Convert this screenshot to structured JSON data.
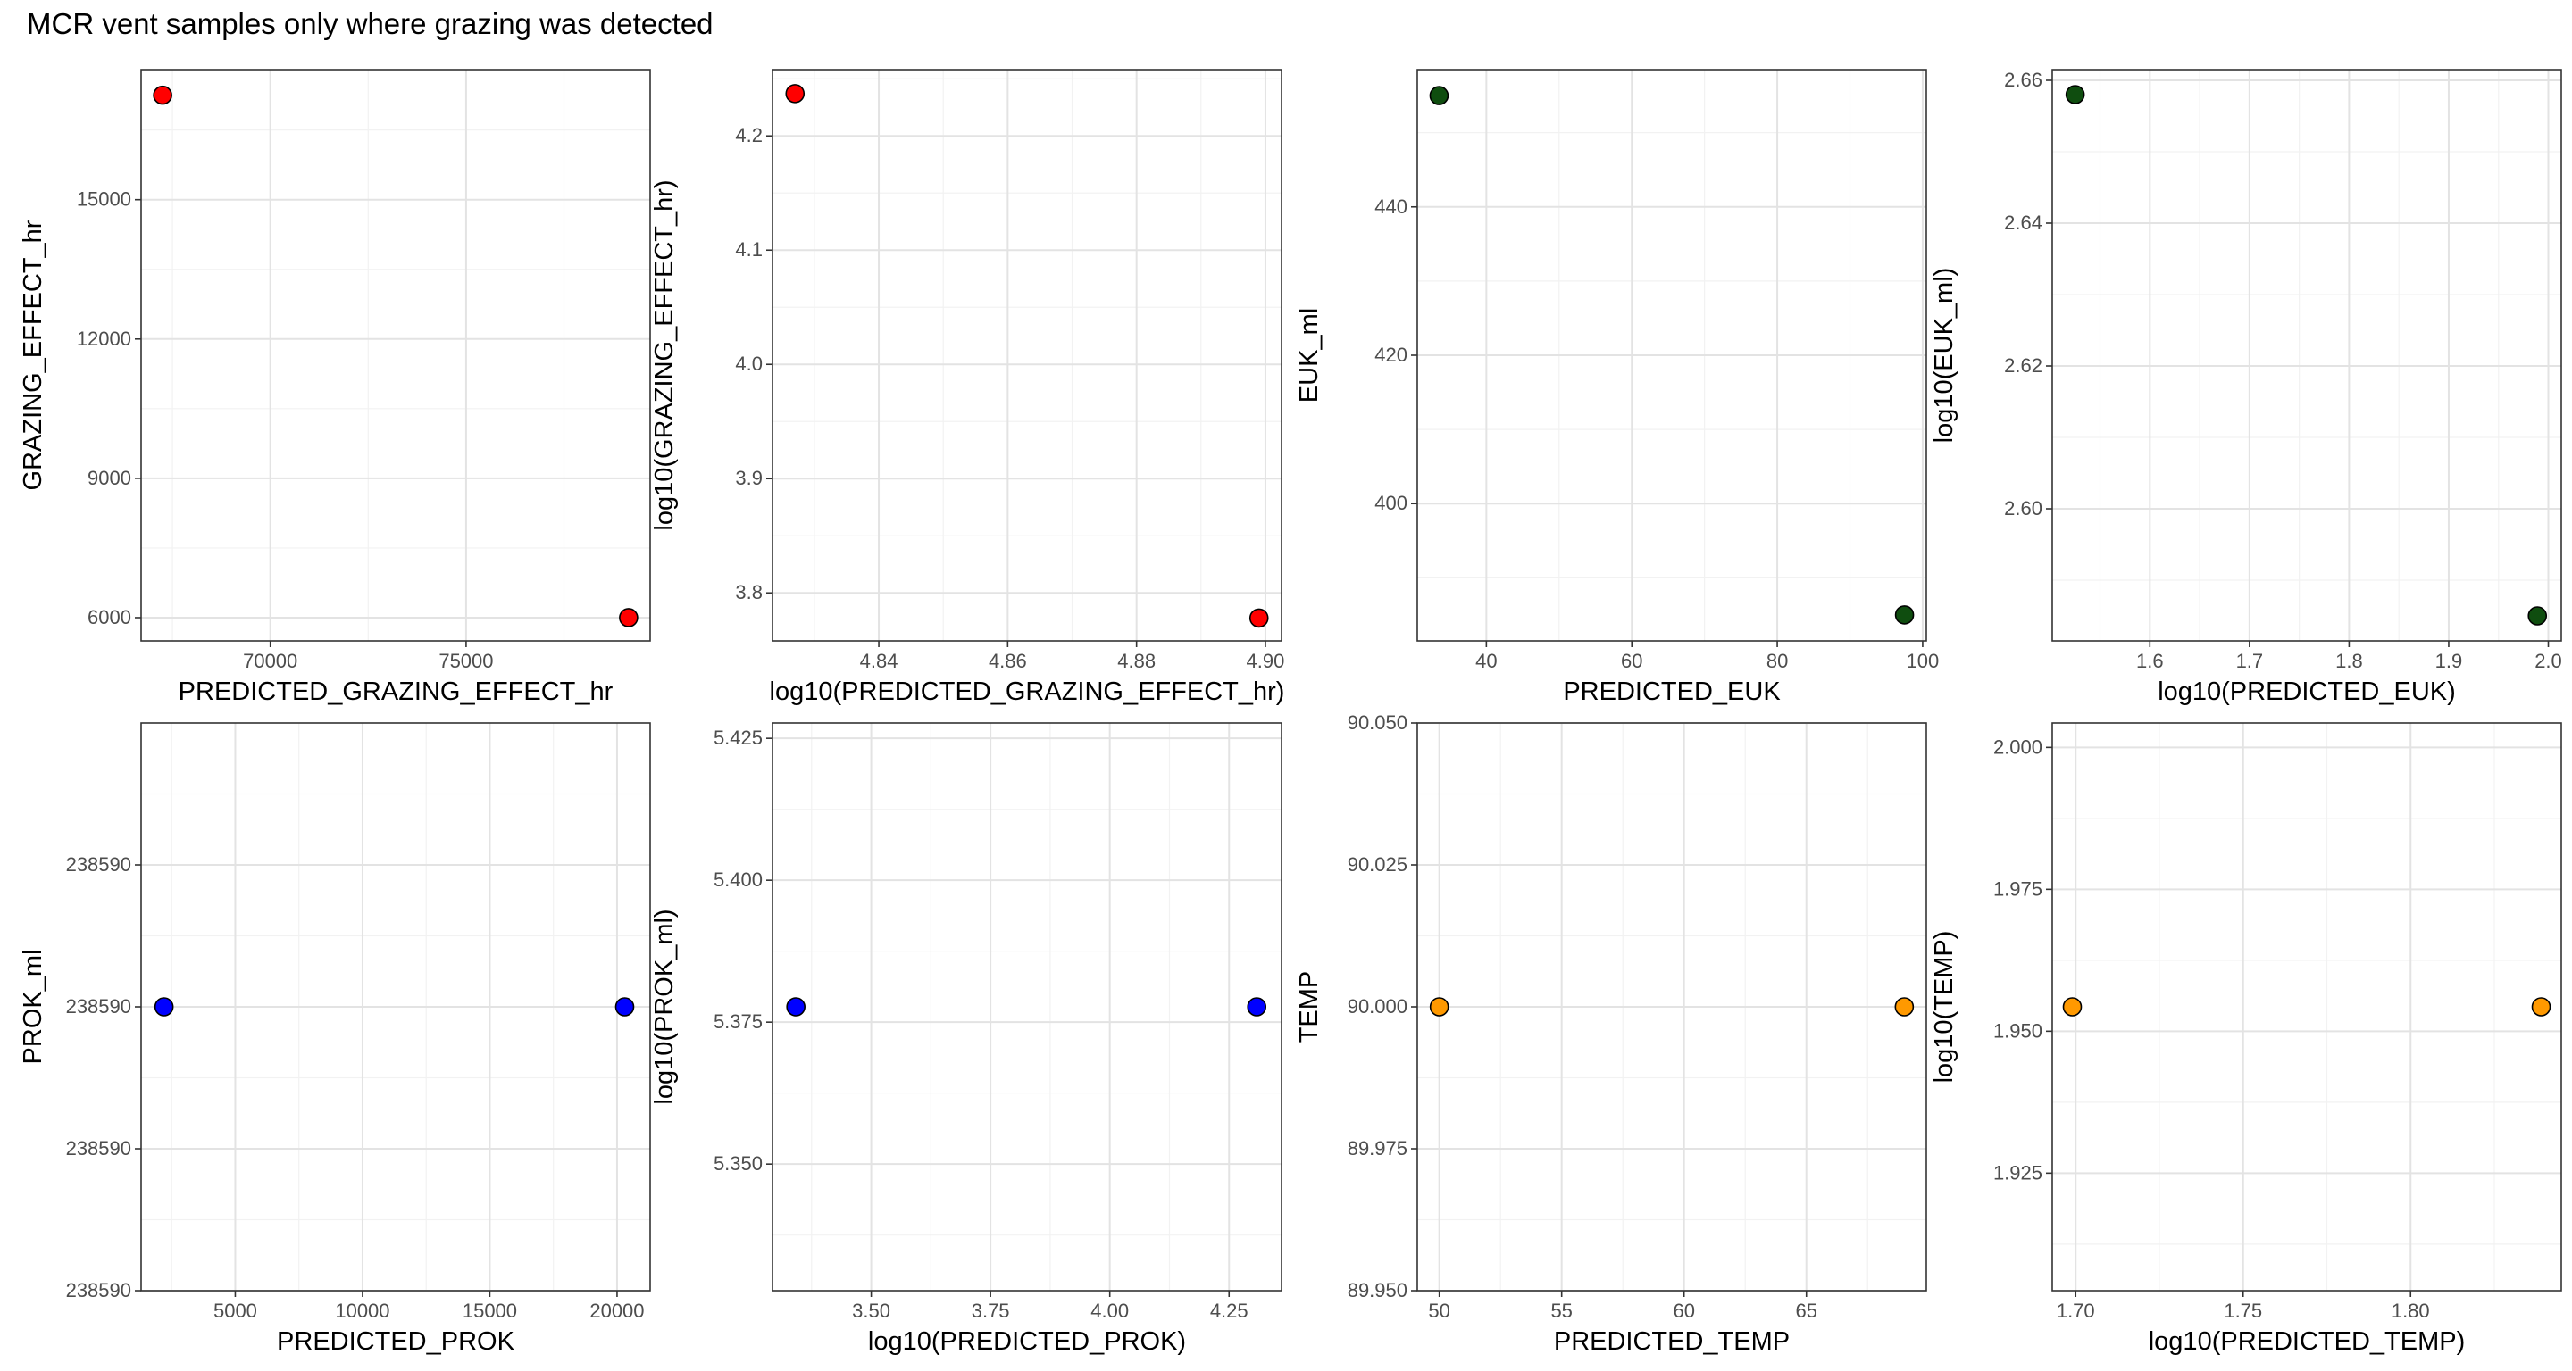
{
  "title": "MCR vent samples only where grazing was detected",
  "chart_data": [
    {
      "type": "scatter",
      "xlabel": "PREDICTED_GRAZING_EFFECT_hr",
      "ylabel": "GRAZING_EFFECT_hr",
      "xlim": [
        66700,
        79700
      ],
      "ylim": [
        5500,
        17800
      ],
      "xticks": [
        70000,
        75000
      ],
      "xtick_labels": [
        "70000",
        "75000"
      ],
      "yticks": [
        6000,
        9000,
        12000,
        15000
      ],
      "ytick_labels": [
        "6000",
        "9000",
        "12000",
        "15000"
      ],
      "grid": true,
      "color": "#ff0000",
      "points": [
        {
          "x": 67250,
          "y": 17250
        },
        {
          "x": 79150,
          "y": 6000
        }
      ]
    },
    {
      "type": "scatter",
      "xlabel": "log10(PREDICTED_GRAZING_EFFECT_hr)",
      "ylabel": "log10(GRAZING_EFFECT_hr)",
      "xlim": [
        4.8235,
        4.9025
      ],
      "ylim": [
        3.758,
        4.258
      ],
      "xticks": [
        4.84,
        4.86,
        4.88,
        4.9
      ],
      "xtick_labels": [
        "4.84",
        "4.86",
        "4.88",
        "4.90"
      ],
      "yticks": [
        3.8,
        3.9,
        4.0,
        4.1,
        4.2
      ],
      "ytick_labels": [
        "3.8",
        "3.9",
        "4.0",
        "4.1",
        "4.2"
      ],
      "grid": true,
      "color": "#ff0000",
      "points": [
        {
          "x": 4.827,
          "y": 4.237
        },
        {
          "x": 4.899,
          "y": 3.778
        }
      ]
    },
    {
      "type": "scatter",
      "xlabel": "PREDICTED_EUK",
      "ylabel": "EUK_ml",
      "xlim": [
        30.5,
        100.5
      ],
      "ylim": [
        381.5,
        458.5
      ],
      "xticks": [
        40,
        60,
        80,
        100
      ],
      "xtick_labels": [
        "40",
        "60",
        "80",
        "100"
      ],
      "yticks": [
        400,
        420,
        440
      ],
      "ytick_labels": [
        "400",
        "420",
        "440"
      ],
      "grid": true,
      "color": "#0f4d0f",
      "points": [
        {
          "x": 33.5,
          "y": 455
        },
        {
          "x": 97.5,
          "y": 385
        }
      ]
    },
    {
      "type": "scatter",
      "xlabel": "log10(PREDICTED_EUK)",
      "ylabel": "log10(EUK_ml)",
      "xlim": [
        1.502,
        2.013
      ],
      "ylim": [
        2.5815,
        2.6615
      ],
      "xticks": [
        1.6,
        1.7,
        1.8,
        1.9,
        2.0
      ],
      "xtick_labels": [
        "1.6",
        "1.7",
        "1.8",
        "1.9",
        "2.0"
      ],
      "yticks": [
        2.6,
        2.62,
        2.64,
        2.66
      ],
      "ytick_labels": [
        "2.60",
        "2.62",
        "2.64",
        "2.66"
      ],
      "grid": true,
      "color": "#0f4d0f",
      "points": [
        {
          "x": 1.525,
          "y": 2.658
        },
        {
          "x": 1.989,
          "y": 2.585
        }
      ]
    },
    {
      "type": "scatter",
      "xlabel": "PREDICTED_PROK",
      "ylabel": "PROK_ml",
      "xlim": [
        1300,
        21300
      ],
      "ylim": [
        0,
        1
      ],
      "xticks": [
        5000,
        10000,
        15000,
        20000
      ],
      "xtick_labels": [
        "5000",
        "10000",
        "15000",
        "20000"
      ],
      "yticks": [
        0,
        0.25,
        0.5,
        0.75
      ],
      "ytick_labels": [
        "238590",
        "238590",
        "238590",
        "238590"
      ],
      "grid": true,
      "color": "#0000ff",
      "points": [
        {
          "x": 2200,
          "y": 0.5
        },
        {
          "x": 20300,
          "y": 0.5
        }
      ]
    },
    {
      "type": "scatter",
      "xlabel": "log10(PREDICTED_PROK)",
      "ylabel": "log10(PROK_ml)",
      "xlim": [
        3.293,
        4.36
      ],
      "ylim": [
        5.3277,
        5.4277
      ],
      "xticks": [
        3.5,
        3.75,
        4.0,
        4.25
      ],
      "xtick_labels": [
        "3.50",
        "3.75",
        "4.00",
        "4.25"
      ],
      "yticks": [
        5.35,
        5.375,
        5.4,
        5.425
      ],
      "ytick_labels": [
        "5.350",
        "5.375",
        "5.400",
        "5.425"
      ],
      "grid": true,
      "color": "#0000ff",
      "points": [
        {
          "x": 3.342,
          "y": 5.3777
        },
        {
          "x": 4.308,
          "y": 5.3777
        }
      ]
    },
    {
      "type": "scatter",
      "xlabel": "PREDICTED_TEMP",
      "ylabel": "TEMP",
      "xlim": [
        49.1,
        69.9
      ],
      "ylim": [
        89.95,
        90.05
      ],
      "xticks": [
        50,
        55,
        60,
        65
      ],
      "xtick_labels": [
        "50",
        "55",
        "60",
        "65"
      ],
      "yticks": [
        89.95,
        89.975,
        90.0,
        90.025,
        90.05
      ],
      "ytick_labels": [
        "89.950",
        "89.975",
        "90.000",
        "90.025",
        "90.050"
      ],
      "grid": true,
      "color": "#ff9900",
      "points": [
        {
          "x": 50,
          "y": 90.0
        },
        {
          "x": 69,
          "y": 90.0
        }
      ]
    },
    {
      "type": "scatter",
      "xlabel": "log10(PREDICTED_TEMP)",
      "ylabel": "log10(TEMP)",
      "xlim": [
        1.693,
        1.845
      ],
      "ylim": [
        1.9043,
        2.0043
      ],
      "xticks": [
        1.7,
        1.75,
        1.8
      ],
      "xtick_labels": [
        "1.70",
        "1.75",
        "1.80"
      ],
      "yticks": [
        1.925,
        1.95,
        1.975,
        2.0
      ],
      "ytick_labels": [
        "1.925",
        "1.950",
        "1.975",
        "2.000"
      ],
      "grid": true,
      "color": "#ff9900",
      "points": [
        {
          "x": 1.699,
          "y": 1.9543
        },
        {
          "x": 1.839,
          "y": 1.9543
        }
      ]
    }
  ]
}
